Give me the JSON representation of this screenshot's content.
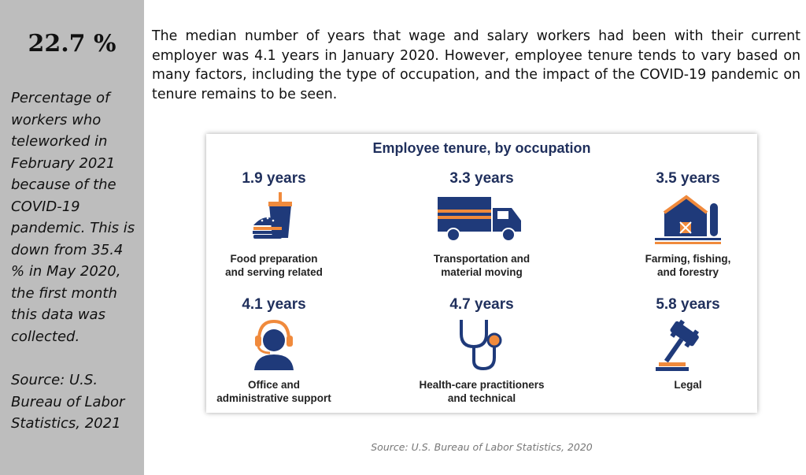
{
  "sidebar": {
    "stat": "22.7 %",
    "description": "Percentage of workers who teleworked in February 2021 because of the COVID-19 pandemic. This is down from 35.4 % in May 2020, the first month this data was collected.",
    "source": "Source: U.S. Bureau of Labor Statistics, 2021"
  },
  "intro": "The median number of years that wage and salary workers had been with their current employer was 4.1 years in January 2020. However, employee tenure tends to vary based on many factors, including the type of occupation, and the impact of the COVID-19 pandemic on tenure remains to be seen.",
  "infographic": {
    "title": "Employee tenure, by occupation",
    "colors": {
      "navy": "#1f3a7a",
      "orange": "#f08a3c",
      "title": "#1f2f5c"
    },
    "items": [
      {
        "years": "1.9 years",
        "line1": "Food preparation",
        "line2": "and serving related",
        "icon": "burger-drink-icon"
      },
      {
        "years": "3.3 years",
        "line1": "Transportation and",
        "line2": "material moving",
        "icon": "truck-icon"
      },
      {
        "years": "3.5 years",
        "line1": "Farming, fishing,",
        "line2": "and forestry",
        "icon": "barn-icon"
      },
      {
        "years": "4.1 years",
        "line1": "Office and",
        "line2": "administrative support",
        "icon": "headset-person-icon"
      },
      {
        "years": "4.7 years",
        "line1": "Health-care practitioners",
        "line2": "and technical",
        "icon": "stethoscope-icon"
      },
      {
        "years": "5.8 years",
        "line1": "Legal",
        "line2": "",
        "icon": "gavel-icon"
      }
    ]
  },
  "source": "Source: U.S. Bureau of Labor Statistics, 2020"
}
